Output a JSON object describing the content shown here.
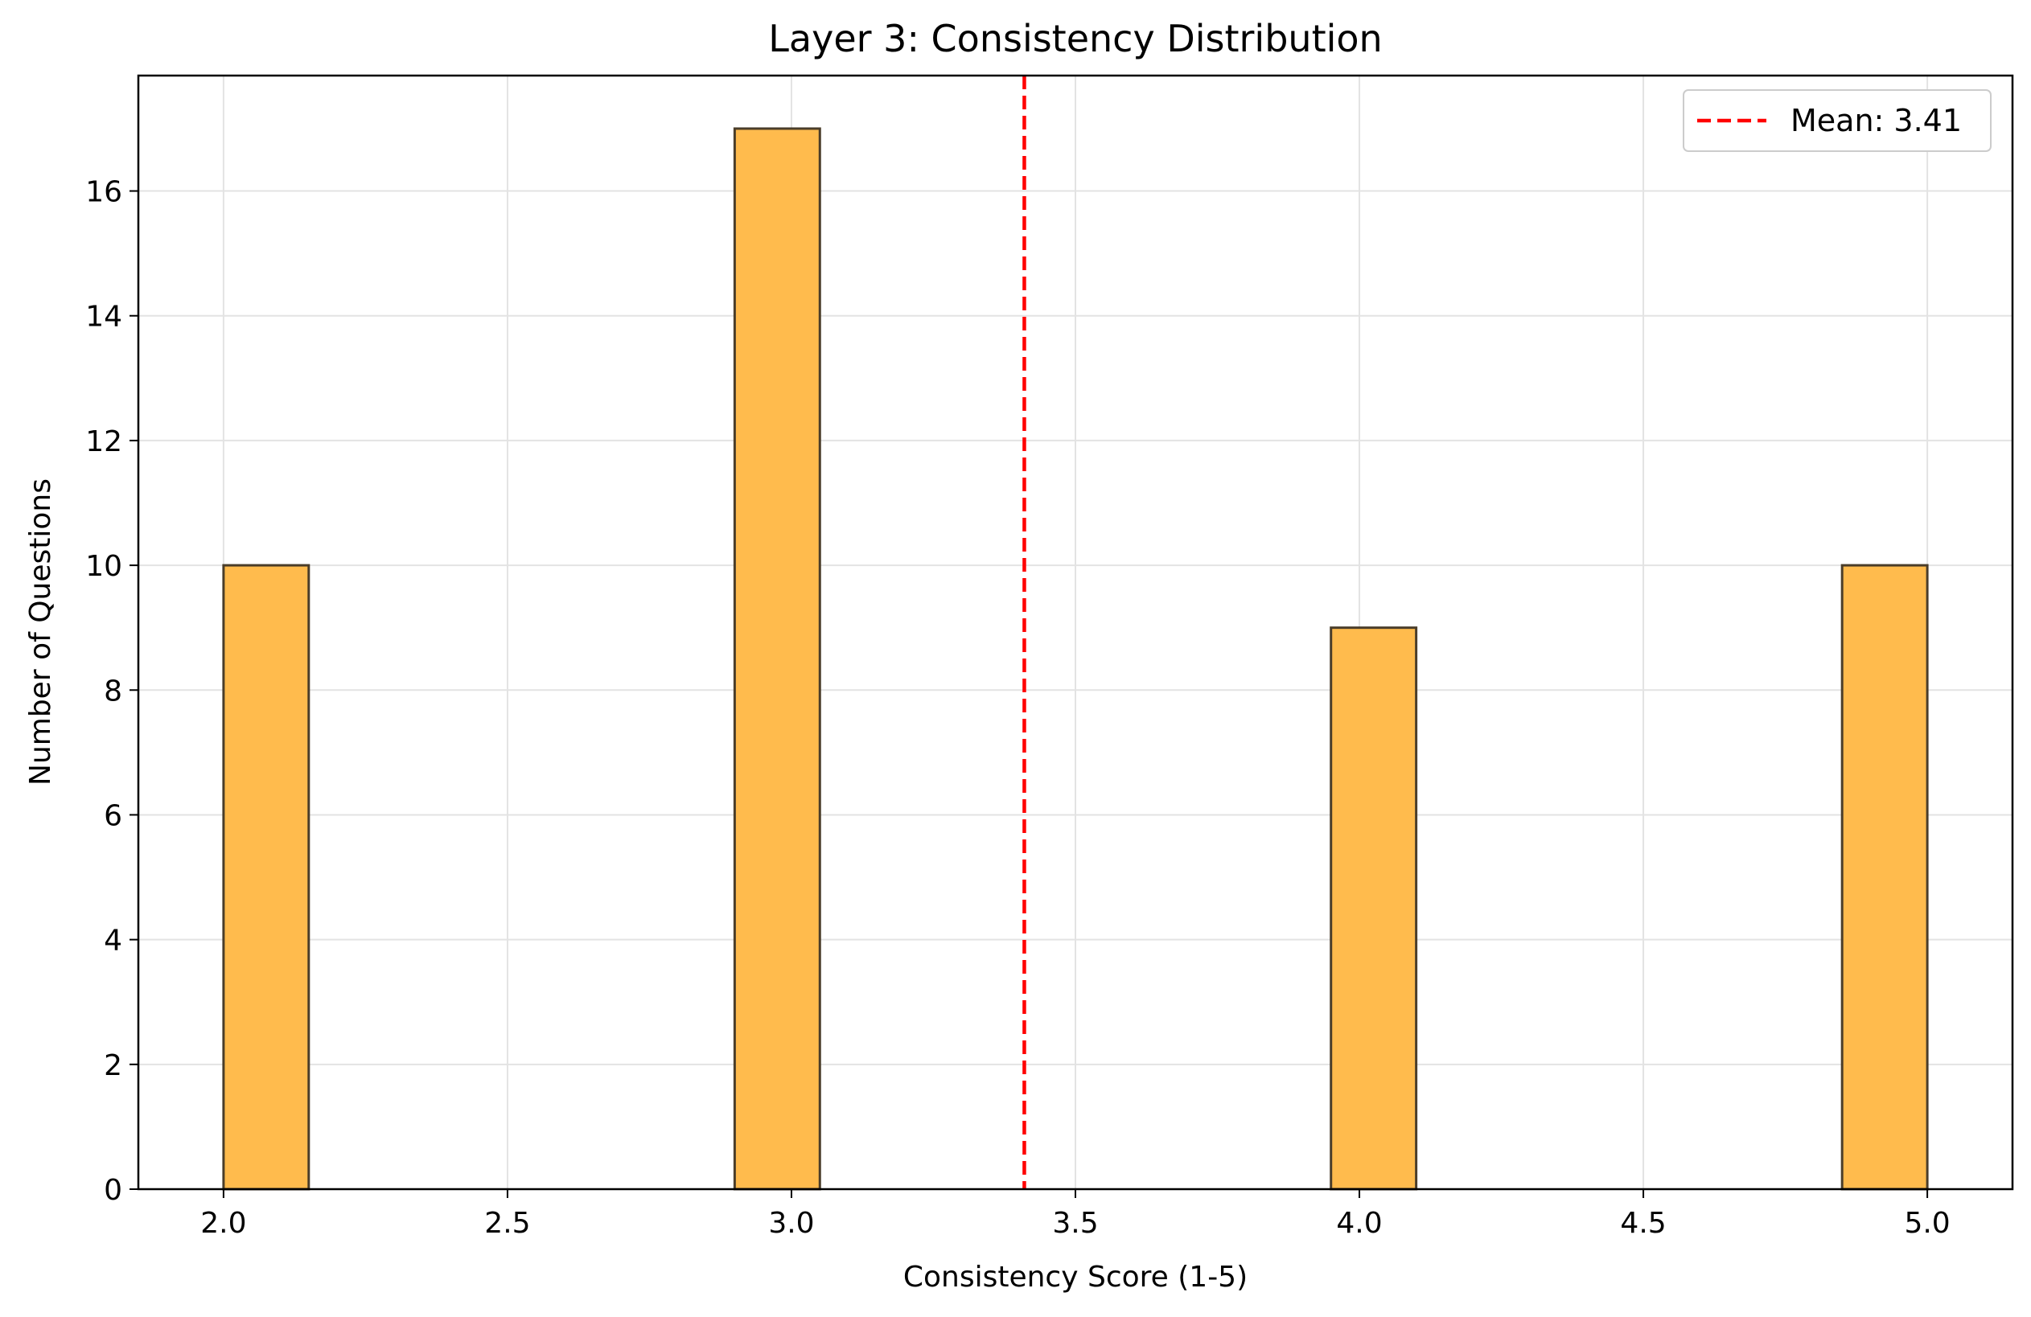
{
  "chart_data": {
    "type": "bar",
    "title": "Layer 3: Consistency Distribution",
    "xlabel": "Consistency Score (1-5)",
    "ylabel": "Number of Questions",
    "xlim": [
      1.85,
      5.15
    ],
    "ylim": [
      0,
      17.85
    ],
    "xticks": [
      "2.0",
      "2.5",
      "3.0",
      "3.5",
      "4.0",
      "4.5",
      "5.0"
    ],
    "yticks": [
      "0",
      "2",
      "4",
      "6",
      "8",
      "10",
      "12",
      "14",
      "16"
    ],
    "bins": [
      {
        "x_start": 2.0,
        "x_end": 2.15,
        "count": 10
      },
      {
        "x_start": 2.9,
        "x_end": 3.05,
        "count": 17
      },
      {
        "x_start": 3.95,
        "x_end": 4.1,
        "count": 9
      },
      {
        "x_start": 4.85,
        "x_end": 5.0,
        "count": 10
      }
    ],
    "bar_color": "#ffbb4d",
    "bar_edge_color": "#4a3d2a",
    "grid": true,
    "mean": {
      "value": 3.41,
      "label": "Mean: 3.41",
      "color": "#ff0000"
    },
    "legend_position": "top-right"
  }
}
